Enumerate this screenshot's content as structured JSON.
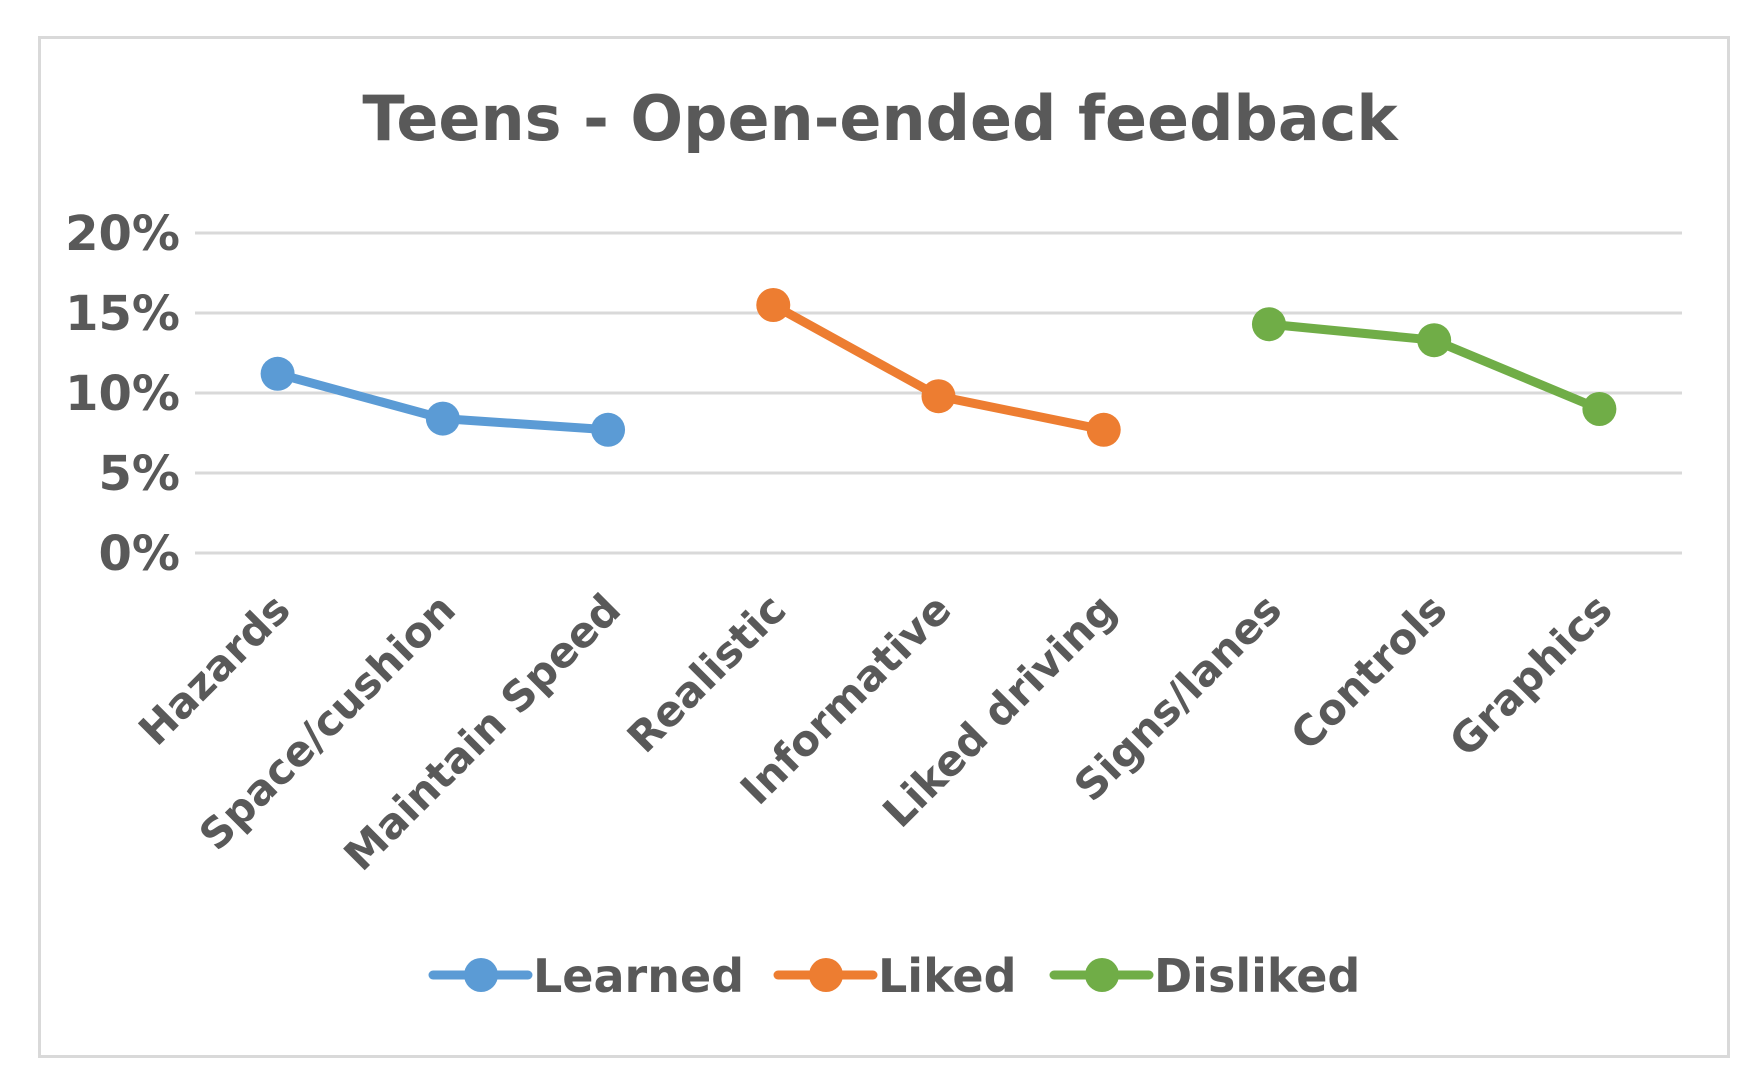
{
  "chart_data": {
    "type": "line",
    "title": "Teens - Open-ended feedback",
    "xlabel": "",
    "ylabel": "",
    "categories": [
      "Hazards",
      "Space/cushion",
      "Maintain Speed",
      "Realistic",
      "Informative",
      "Liked driving",
      "Signs/lanes",
      "Controls",
      "Graphics"
    ],
    "yticks": [
      "0%",
      "5%",
      "10%",
      "15%",
      "20%"
    ],
    "ylim": [
      0,
      20
    ],
    "grid": true,
    "legend_position": "bottom",
    "series": [
      {
        "name": "Learned",
        "color": "#5b9bd5",
        "x": [
          "Hazards",
          "Space/cushion",
          "Maintain Speed"
        ],
        "values": [
          11.2,
          8.4,
          7.7
        ]
      },
      {
        "name": "Liked",
        "color": "#ed7d31",
        "x": [
          "Realistic",
          "Informative",
          "Liked driving"
        ],
        "values": [
          15.5,
          9.8,
          7.7
        ]
      },
      {
        "name": "Disliked",
        "color": "#70ad47",
        "x": [
          "Signs/lanes",
          "Controls",
          "Graphics"
        ],
        "values": [
          14.3,
          13.3,
          9.0
        ]
      }
    ]
  }
}
